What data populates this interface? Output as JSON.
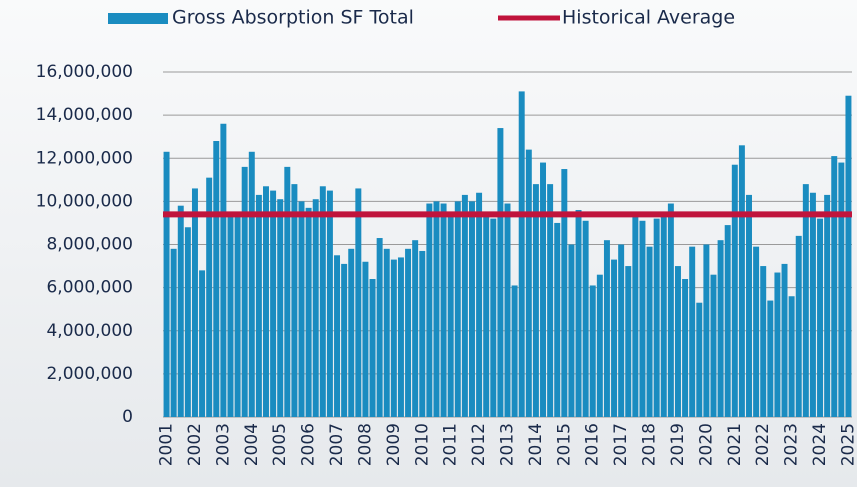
{
  "chart_data": {
    "type": "bar",
    "categories": [
      "2001",
      null,
      null,
      null,
      "2002",
      null,
      null,
      null,
      "2003",
      null,
      null,
      null,
      "2004",
      null,
      null,
      null,
      "2005",
      null,
      null,
      null,
      "2006",
      null,
      null,
      null,
      "2007",
      null,
      null,
      null,
      "2008",
      null,
      null,
      null,
      "2009",
      null,
      null,
      null,
      "2010",
      null,
      null,
      null,
      "2011",
      null,
      null,
      null,
      "2012",
      null,
      null,
      null,
      "2013",
      null,
      null,
      null,
      "2014",
      null,
      null,
      null,
      "2015",
      null,
      null,
      null,
      "2016",
      null,
      null,
      null,
      "2017",
      null,
      null,
      null,
      "2018",
      null,
      null,
      null,
      "2019",
      null,
      null,
      null,
      "2020",
      null,
      null,
      null,
      "2021",
      null,
      null,
      null,
      "2022",
      null,
      null,
      null,
      "2023",
      null,
      null,
      null,
      "2024",
      null,
      null,
      null,
      "2025"
    ],
    "series": [
      {
        "name": "Gross Absorption SF Total",
        "type": "bar",
        "color": "#1a8cc0",
        "values": [
          12300000,
          7800000,
          9800000,
          8800000,
          10600000,
          6800000,
          11100000,
          12800000,
          13600000,
          9300000,
          9400000,
          11600000,
          12300000,
          10300000,
          10700000,
          10500000,
          10100000,
          11600000,
          10800000,
          10000000,
          9700000,
          10100000,
          10700000,
          10500000,
          7500000,
          7100000,
          7800000,
          10600000,
          7200000,
          6400000,
          8300000,
          7800000,
          7300000,
          7400000,
          7800000,
          8200000,
          7700000,
          9900000,
          10000000,
          9900000,
          9500000,
          10000000,
          10300000,
          10000000,
          10400000,
          9400000,
          9200000,
          13400000,
          9900000,
          6100000,
          15100000,
          12400000,
          10800000,
          11800000,
          10800000,
          9000000,
          11500000,
          8000000,
          9600000,
          9100000,
          6100000,
          6600000,
          8200000,
          7300000,
          8000000,
          7000000,
          9300000,
          9100000,
          7900000,
          9200000,
          9300000,
          9900000,
          7000000,
          6400000,
          7900000,
          5300000,
          8000000,
          6600000,
          8200000,
          8900000,
          11700000,
          12600000,
          10300000,
          7900000,
          7000000,
          5400000,
          6700000,
          7100000,
          5600000,
          8400000,
          10800000,
          10400000,
          9200000,
          10300000,
          12100000,
          11800000,
          14900000
        ]
      },
      {
        "name": "Historical Average",
        "type": "line",
        "color": "#c0143c",
        "values": [
          9400000,
          9400000,
          9400000,
          9400000,
          9400000,
          9400000,
          9400000,
          9400000,
          9400000,
          9400000,
          9400000,
          9400000,
          9400000,
          9400000,
          9400000,
          9400000,
          9400000,
          9400000,
          9400000,
          9400000,
          9400000,
          9400000,
          9400000,
          9400000,
          9400000,
          9400000,
          9400000,
          9400000,
          9400000,
          9400000,
          9400000,
          9400000,
          9400000,
          9400000,
          9400000,
          9400000,
          9400000,
          9400000,
          9400000,
          9400000,
          9400000,
          9400000,
          9400000,
          9400000,
          9400000,
          9400000,
          9400000,
          9400000,
          9400000,
          9400000,
          9400000,
          9400000,
          9400000,
          9400000,
          9400000,
          9400000,
          9400000,
          9400000,
          9400000,
          9400000,
          9400000,
          9400000,
          9400000,
          9400000,
          9400000,
          9400000,
          9400000,
          9400000,
          9400000,
          9400000,
          9400000,
          9400000,
          9400000,
          9400000,
          9400000,
          9400000,
          9400000,
          9400000,
          9400000,
          9400000,
          9400000,
          9400000,
          9400000,
          9400000,
          9400000,
          9400000,
          9400000,
          9400000,
          9400000,
          9400000,
          9400000,
          9400000,
          9400000,
          9400000,
          9400000,
          9400000,
          9400000
        ]
      }
    ],
    "ylim": [
      0,
      16000000
    ],
    "yticks": [
      0,
      {
        "value": 2000000,
        "label": "2,000,000"
      },
      {
        "value": 4000000,
        "label": "4,000,000"
      },
      {
        "value": 6000000,
        "label": "6,000,000"
      },
      {
        "value": 8000000,
        "label": "8,000,000"
      },
      {
        "value": 10000000,
        "label": "10,000,000"
      },
      {
        "value": 12000000,
        "label": "12,000,000"
      },
      {
        "value": 14000000,
        "label": "14,000,000"
      },
      {
        "value": 16000000,
        "label": "16,000,000"
      }
    ],
    "grid": true,
    "legend": "top"
  }
}
